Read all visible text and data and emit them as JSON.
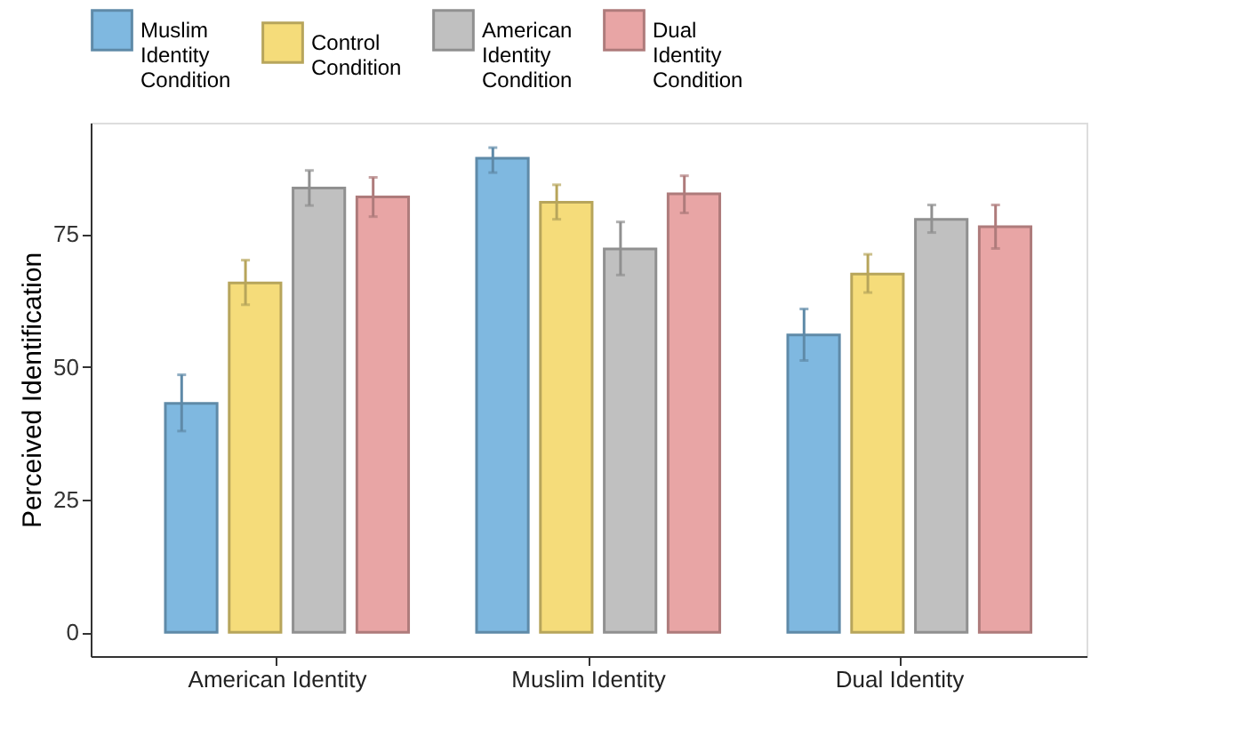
{
  "chart_data": {
    "type": "bar",
    "ylabel": "Perceived Identification",
    "categories": [
      "American Identity",
      "Muslim Identity",
      "Dual Identity"
    ],
    "series": [
      {
        "name": "Muslim Identity Condition",
        "color": "#7fb8e0",
        "values": [
          43.1,
          89.3,
          56.0
        ],
        "errors": [
          [
            37.9,
            48.5
          ],
          [
            86.6,
            91.3
          ],
          [
            51.2,
            60.9
          ]
        ]
      },
      {
        "name": "Control Condition",
        "color": "#f5dc7a",
        "values": [
          65.8,
          81.0,
          67.5
        ],
        "errors": [
          [
            61.7,
            70.1
          ],
          [
            77.8,
            84.3
          ],
          [
            64.0,
            71.2
          ]
        ]
      },
      {
        "name": "American Identity Condition",
        "color": "#c0c0c0",
        "values": [
          83.7,
          72.2,
          77.8
        ],
        "errors": [
          [
            80.4,
            87.0
          ],
          [
            67.3,
            77.3
          ],
          [
            75.3,
            80.5
          ]
        ]
      },
      {
        "name": "Dual Identity Condition",
        "color": "#e8a5a5",
        "values": [
          82.0,
          82.6,
          76.4
        ],
        "errors": [
          [
            78.3,
            85.7
          ],
          [
            79.0,
            86.0
          ],
          [
            72.3,
            80.5
          ]
        ]
      }
    ],
    "ylim": [
      -4.5,
      96
    ],
    "yticks": [
      0,
      25,
      50,
      75
    ],
    "grid": false,
    "legend": "top"
  }
}
